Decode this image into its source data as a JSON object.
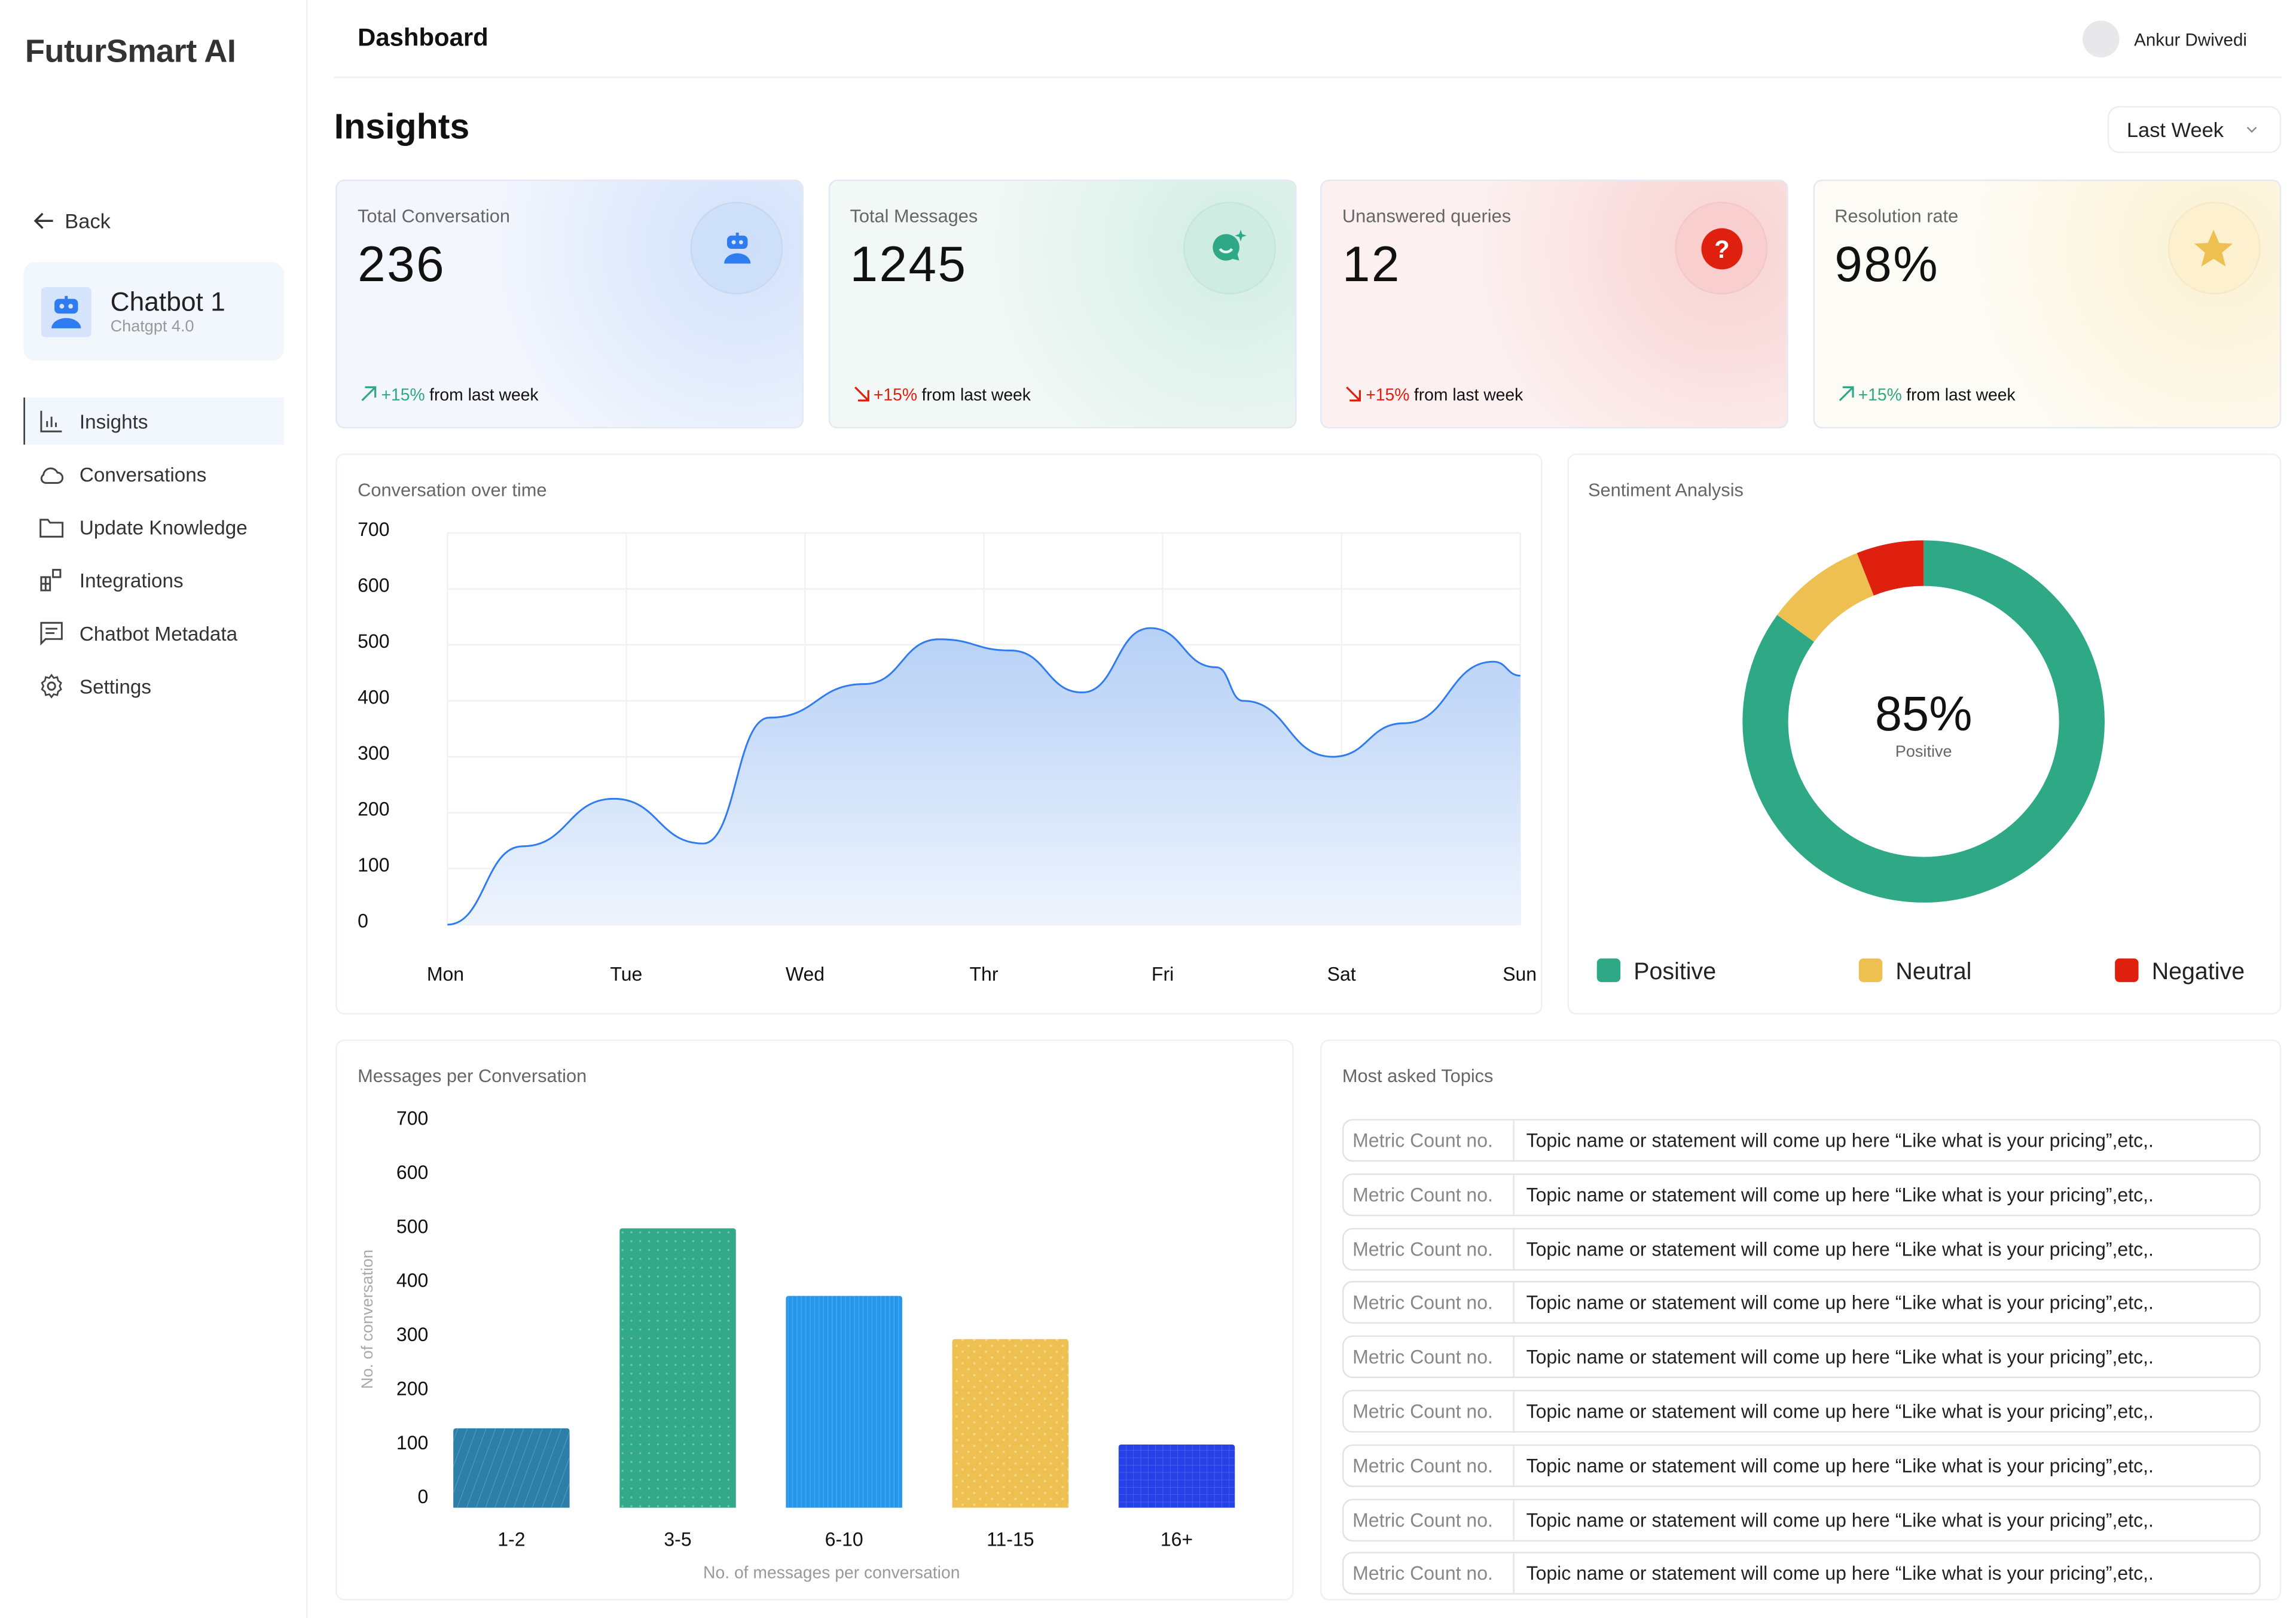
{
  "brand": "FuturSmart AI",
  "sidebar": {
    "back": "Back",
    "bot": {
      "name": "Chatbot 1",
      "model": "Chatgpt 4.0"
    },
    "items": [
      {
        "label": "Insights",
        "icon": "bar-chart-icon",
        "active": true
      },
      {
        "label": "Conversations",
        "icon": "cloud-icon"
      },
      {
        "label": "Update Knowledge",
        "icon": "folder-icon"
      },
      {
        "label": "Integrations",
        "icon": "integrations-icon"
      },
      {
        "label": "Chatbot Metadata",
        "icon": "message-square-icon"
      },
      {
        "label": "Settings",
        "icon": "gear-icon"
      }
    ]
  },
  "header": {
    "title": "Dashboard",
    "user": "Ankur Dwivedi"
  },
  "page": {
    "title": "Insights",
    "range": "Last Week"
  },
  "stats": [
    {
      "label": "Total Conversation",
      "value": "236",
      "change": "+15%",
      "trend": "up",
      "suffix": "from last week",
      "icon": "robot-icon",
      "color": "#2f7cf0"
    },
    {
      "label": "Total Messages",
      "value": "1245",
      "change": "+15%",
      "trend": "down",
      "suffix": "from last week",
      "icon": "chat-sparkle-icon",
      "color": "#2fa985"
    },
    {
      "label": "Unanswered queries",
      "value": "12",
      "change": "+15%",
      "trend": "down",
      "suffix": "from last week",
      "icon": "question-icon",
      "color": "#e0200f"
    },
    {
      "label": "Resolution rate",
      "value": "98%",
      "change": "+15%",
      "trend": "up",
      "suffix": "from last week",
      "icon": "star-icon",
      "color": "#eec052"
    }
  ],
  "colors": {
    "up": "#2fa985",
    "down": "#e0200f",
    "line": "#2f7cf0"
  },
  "chart_data": [
    {
      "type": "area",
      "title": "Conversation over time",
      "categories": [
        "Mon",
        "Tue",
        "Wed",
        "Thr",
        "Fri",
        "Sat",
        "Sun"
      ],
      "x": [
        0,
        0.42,
        0.93,
        1.43,
        1.8,
        2.33,
        2.75,
        3.15,
        3.55,
        3.93,
        4.3,
        4.45,
        4.95,
        5.35,
        5.85,
        6
      ],
      "y": [
        0,
        140,
        225,
        145,
        370,
        430,
        510,
        490,
        415,
        530,
        460,
        400,
        300,
        360,
        470,
        445
      ],
      "yticks": [
        0,
        100,
        200,
        300,
        400,
        500,
        600,
        700
      ],
      "ylim": [
        0,
        700
      ],
      "grid": true
    },
    {
      "type": "pie",
      "title": "Sentiment Analysis",
      "center_label": "85%",
      "center_sub": "Positive",
      "slices": [
        {
          "name": "Positive",
          "value": 85,
          "color": "#2fa985"
        },
        {
          "name": "Neutral",
          "value": 9,
          "color": "#eec052"
        },
        {
          "name": "Negative",
          "value": 6,
          "color": "#e0200f"
        }
      ],
      "legend": "bottom"
    },
    {
      "type": "bar",
      "title": "Messages per Conversation",
      "categories": [
        "1-2",
        "3-5",
        "6-10",
        "11-15",
        "16+"
      ],
      "values": [
        125,
        495,
        370,
        290,
        95
      ],
      "colors": [
        "#2e7fa8",
        "#33a98a",
        "#2596ea",
        "#eec052",
        "#2440e6"
      ],
      "yticks": [
        0,
        100,
        200,
        300,
        400,
        500,
        600,
        700
      ],
      "ylim": [
        0,
        700
      ],
      "xlabel": "No. of messages per conversation",
      "ylabel": "No. of conversation"
    }
  ],
  "topics": {
    "title": "Most asked Topics",
    "rows": [
      {
        "metric": "Metric Count no.",
        "topic": "Topic name or statement will come up here “Like what is your pricing”,etc,."
      },
      {
        "metric": "Metric Count no.",
        "topic": "Topic name or statement will come up here “Like what is your pricing”,etc,."
      },
      {
        "metric": "Metric Count no.",
        "topic": "Topic name or statement will come up here “Like what is your pricing”,etc,."
      },
      {
        "metric": "Metric Count no.",
        "topic": "Topic name or statement will come up here “Like what is your pricing”,etc,."
      },
      {
        "metric": "Metric Count no.",
        "topic": "Topic name or statement will come up here “Like what is your pricing”,etc,."
      },
      {
        "metric": "Metric Count no.",
        "topic": "Topic name or statement will come up here “Like what is your pricing”,etc,."
      },
      {
        "metric": "Metric Count no.",
        "topic": "Topic name or statement will come up here “Like what is your pricing”,etc,."
      },
      {
        "metric": "Metric Count no.",
        "topic": "Topic name or statement will come up here “Like what is your pricing”,etc,."
      },
      {
        "metric": "Metric Count no.",
        "topic": "Topic name or statement will come up here “Like what is your pricing”,etc,."
      }
    ]
  }
}
